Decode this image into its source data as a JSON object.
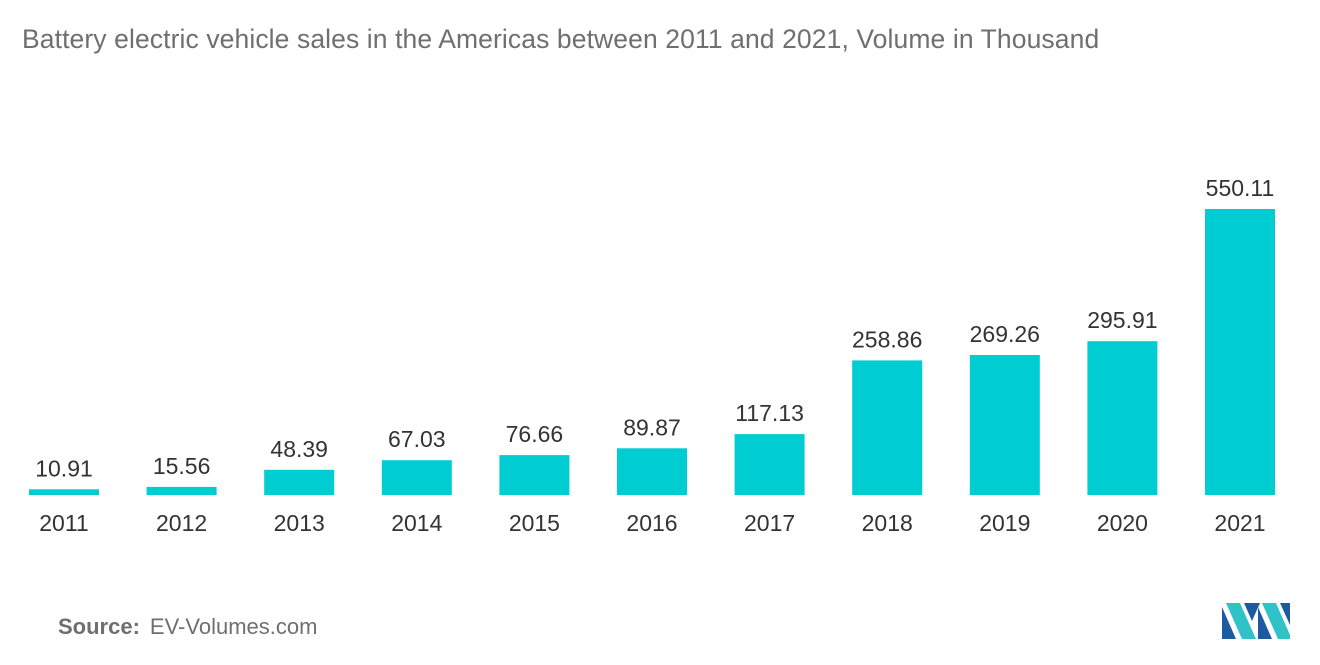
{
  "chart_data": {
    "type": "bar",
    "title": "Battery electric vehicle sales in the Americas between 2011 and 2021, Volume in Thousand",
    "categories": [
      "2011",
      "2012",
      "2013",
      "2014",
      "2015",
      "2016",
      "2017",
      "2018",
      "2019",
      "2020",
      "2021"
    ],
    "values": [
      10.91,
      15.56,
      48.39,
      67.03,
      76.66,
      89.87,
      117.13,
      258.86,
      269.26,
      295.91,
      550.11
    ],
    "value_labels": [
      "10.91",
      "15.56",
      "48.39",
      "67.03",
      "76.66",
      "89.87",
      "117.13",
      "258.86",
      "269.26",
      "295.91",
      "550.11"
    ],
    "xlabel": "",
    "ylabel": "",
    "ylim": [
      0,
      550.11
    ],
    "grid": false,
    "legend": "none",
    "bar_color": "#00cdd2"
  },
  "source": {
    "label": "Source:",
    "text": "EV-Volumes.com"
  },
  "logo": {
    "icon": "mordor-intelligence-logo-icon",
    "colors": [
      "#1e5aa0",
      "#2fc3c8"
    ]
  }
}
